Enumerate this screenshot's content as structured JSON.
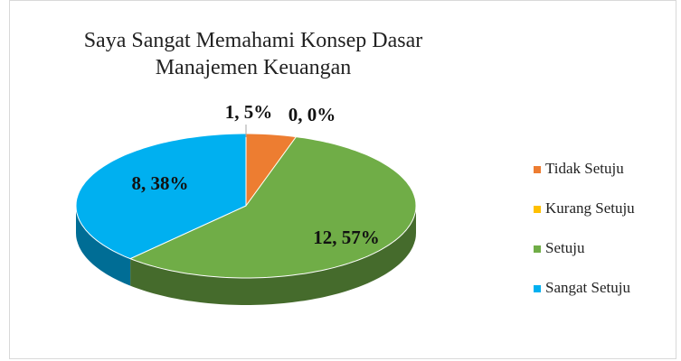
{
  "chart_data": {
    "type": "pie3d",
    "title": "Saya Sangat Memahami Konsep Dasar Manajemen Keuangan",
    "categories": [
      "Tidak Setuju",
      "Kurang Setuju",
      "Setuju",
      "Sangat Setuju"
    ],
    "values": [
      1,
      0,
      12,
      8
    ],
    "value_labels": [
      "1, 5%",
      "0, 0%",
      "12, 57%",
      "8, 38%"
    ],
    "colors": [
      "#ed7d31",
      "#ffc000",
      "#70ad47",
      "#00b0f0"
    ],
    "legend": "right"
  }
}
